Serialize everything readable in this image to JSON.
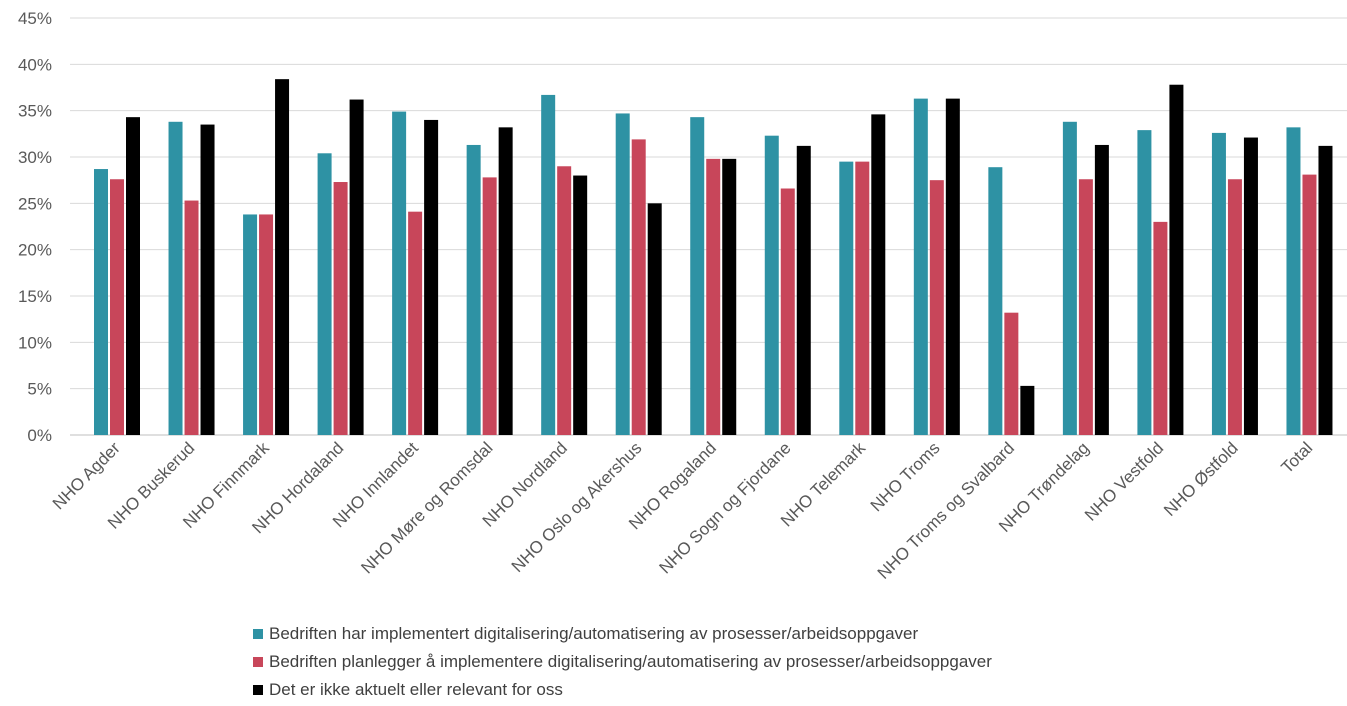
{
  "chart_data": {
    "type": "bar",
    "title": "",
    "xlabel": "",
    "ylabel": "",
    "ylim": [
      0,
      45
    ],
    "yticks": [
      "0%",
      "5%",
      "10%",
      "15%",
      "20%",
      "25%",
      "30%",
      "35%",
      "40%",
      "45%"
    ],
    "y_unit": "%",
    "grid": true,
    "legend_position": "bottom",
    "categories": [
      "NHO Agder",
      "NHO Buskerud",
      "NHO Finnmark",
      "NHO Hordaland",
      "NHO Innlandet",
      "NHO Møre og Romsdal",
      "NHO Nordland",
      "NHO Oslo og Akershus",
      "NHO Rogaland",
      "NHO Sogn og Fjordane",
      "NHO Telemark",
      "NHO Troms",
      "NHO Troms og Svalbard",
      "NHO Trøndelag",
      "NHO Vestfold",
      "NHO Østfold",
      "Total"
    ],
    "series": [
      {
        "name": "Bedriften har implementert digitalisering/automatisering av prosesser/arbeidsoppgaver",
        "color": "#2E92A4",
        "values": [
          28.7,
          33.8,
          23.8,
          30.4,
          34.9,
          31.3,
          36.7,
          34.7,
          34.3,
          32.3,
          29.5,
          36.3,
          28.9,
          33.8,
          32.9,
          32.6,
          33.2
        ]
      },
      {
        "name": "Bedriften planlegger å implementere digitalisering/automatisering av prosesser/arbeidsoppgaver",
        "color": "#C8465A",
        "values": [
          27.6,
          25.3,
          23.8,
          27.3,
          24.1,
          27.8,
          29.0,
          31.9,
          29.8,
          26.6,
          29.5,
          27.5,
          13.2,
          27.6,
          23.0,
          27.6,
          28.1
        ]
      },
      {
        "name": "Det er ikke aktuelt eller relevant for oss",
        "color": "#000000",
        "values": [
          34.3,
          33.5,
          38.4,
          36.2,
          34.0,
          33.2,
          28.0,
          25.0,
          29.8,
          31.2,
          34.6,
          36.3,
          5.3,
          31.3,
          37.8,
          32.1,
          31.2
        ]
      }
    ]
  }
}
